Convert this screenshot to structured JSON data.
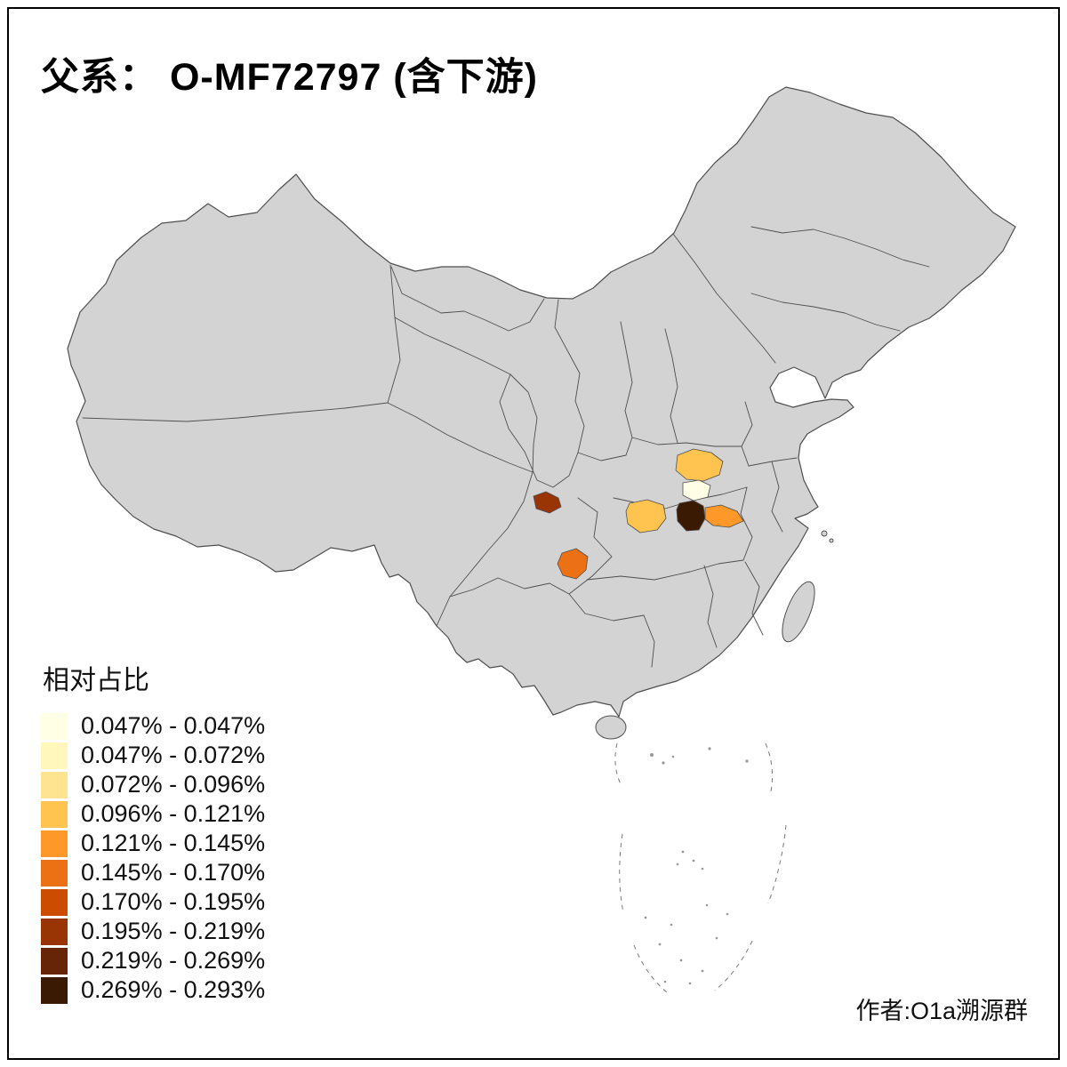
{
  "title": "父系： O-MF72797 (含下游)",
  "legend": {
    "title": "相对占比",
    "items": [
      {
        "label": "0.047% - 0.047%",
        "color": "#FFFFE5"
      },
      {
        "label": "0.047% - 0.072%",
        "color": "#FFF7BC"
      },
      {
        "label": "0.072% - 0.096%",
        "color": "#FEE391"
      },
      {
        "label": "0.096% - 0.121%",
        "color": "#FEC44F"
      },
      {
        "label": "0.121% - 0.145%",
        "color": "#FE9929"
      },
      {
        "label": "0.145% - 0.170%",
        "color": "#EC7014"
      },
      {
        "label": "0.170% - 0.195%",
        "color": "#CC4C02"
      },
      {
        "label": "0.195% - 0.219%",
        "color": "#993404"
      },
      {
        "label": "0.219% - 0.269%",
        "color": "#662506"
      },
      {
        "label": "0.269% - 0.293%",
        "color": "#3B1A03"
      }
    ]
  },
  "credit": "作者:O1a溯源群",
  "map": {
    "land_fill": "#D3D3D3",
    "border_color": "#4F4F4F",
    "background": "#FFFFFF",
    "highlighted_regions": [
      {
        "id": "region-1",
        "class_index": 3
      },
      {
        "id": "region-2",
        "class_index": 0
      },
      {
        "id": "region-3",
        "class_index": 9
      },
      {
        "id": "region-4",
        "class_index": 4
      },
      {
        "id": "region-5",
        "class_index": 3
      },
      {
        "id": "region-6",
        "class_index": 7
      },
      {
        "id": "region-7",
        "class_index": 5
      }
    ]
  }
}
